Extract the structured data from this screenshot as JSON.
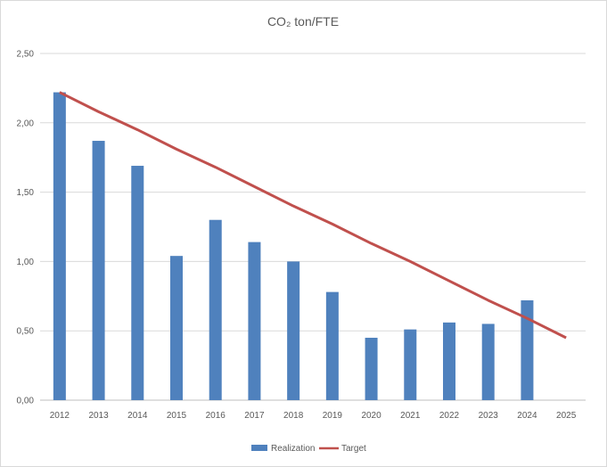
{
  "chart_data": {
    "type": "bar",
    "title": "CO₂ ton/FTE",
    "xlabel": "",
    "ylabel": "",
    "categories": [
      "2012",
      "2013",
      "2014",
      "2015",
      "2016",
      "2017",
      "2018",
      "2019",
      "2020",
      "2021",
      "2022",
      "2023",
      "2024",
      "2025"
    ],
    "ylim": [
      0,
      2.5
    ],
    "yticks": [
      "0,00",
      "0,50",
      "1,00",
      "1,50",
      "2,00",
      "2,50"
    ],
    "grid": true,
    "legend_position": "bottom",
    "series": [
      {
        "name": "Realization",
        "type": "bar",
        "color": "#4f81bd",
        "values": [
          2.22,
          1.87,
          1.69,
          1.04,
          1.3,
          1.14,
          1.0,
          0.78,
          0.45,
          0.51,
          0.56,
          0.55,
          0.72,
          null
        ]
      },
      {
        "name": "Target",
        "type": "line",
        "color": "#c0504d",
        "values": [
          2.22,
          2.08,
          1.95,
          1.81,
          1.68,
          1.54,
          1.4,
          1.27,
          1.13,
          1.0,
          0.86,
          0.72,
          0.59,
          0.45
        ]
      }
    ]
  }
}
